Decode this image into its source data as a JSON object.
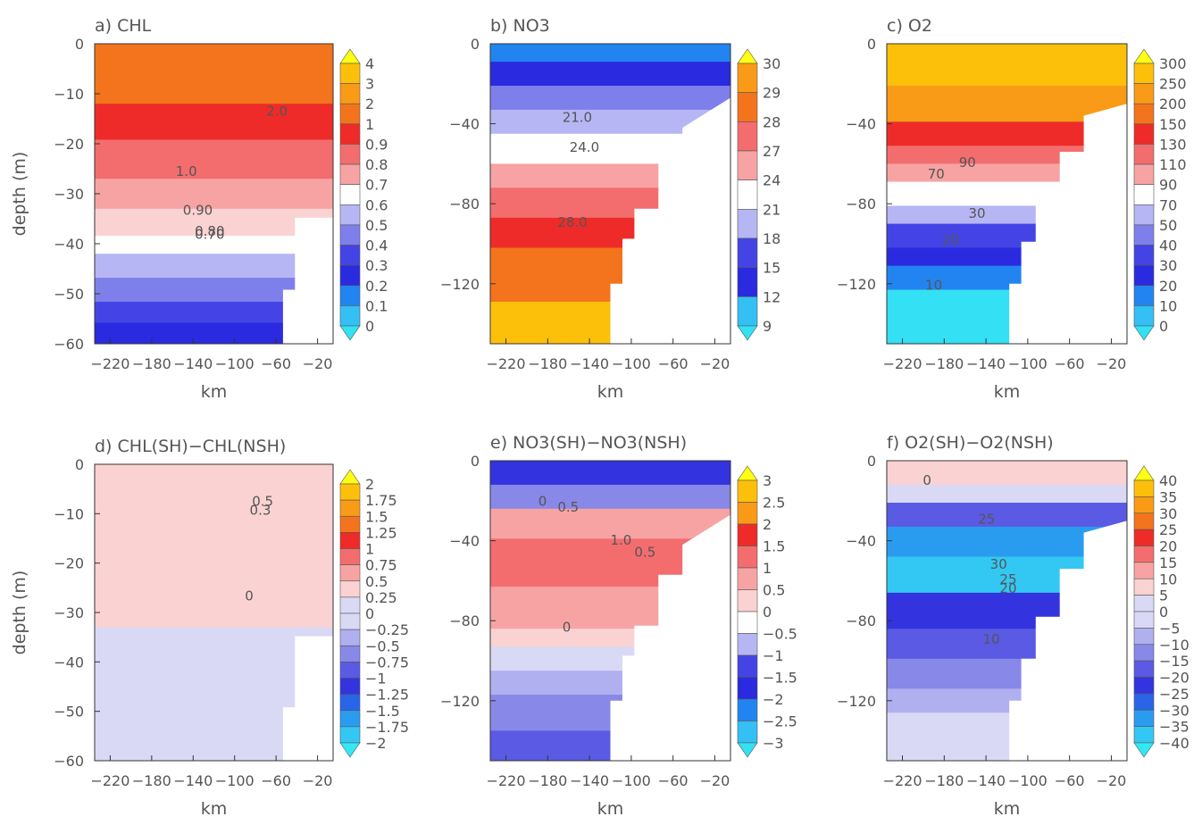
{
  "figure": {
    "shared_xlabel": "km",
    "shared_ylabel": "depth (m)"
  },
  "chart_data": [
    {
      "type": "heatmap",
      "panel": "a",
      "title": "a) CHL",
      "xlabel": "km",
      "ylabel": "depth (m)",
      "x_ticks": [
        -220,
        -180,
        -140,
        -100,
        -60,
        -20
      ],
      "y_ticks": [
        0,
        -10,
        -20,
        -30,
        -40,
        -50,
        -60
      ],
      "xlim": [
        -235,
        -5
      ],
      "ylim": [
        -60,
        0
      ],
      "colorbar_levels": [
        "4",
        "3",
        "2",
        "1",
        "0.9",
        "0.8",
        "0.7",
        "0.6",
        "0.5",
        "0.4",
        "0.3",
        "0.2",
        "0.1",
        "0"
      ],
      "contour_labels": [
        "2.0",
        "1.0",
        "0.90",
        "0.80",
        "0.70"
      ]
    },
    {
      "type": "heatmap",
      "panel": "b",
      "title": "b) NO3",
      "xlabel": "km",
      "ylabel": "",
      "x_ticks": [
        -220,
        -180,
        -140,
        -100,
        -60,
        -20
      ],
      "y_ticks": [
        0,
        -40,
        -80,
        -120
      ],
      "xlim": [
        -235,
        -5
      ],
      "ylim": [
        -150,
        0
      ],
      "colorbar_levels": [
        "30",
        "29",
        "28",
        "27",
        "24",
        "21",
        "18",
        "15",
        "12",
        "9"
      ],
      "contour_labels": [
        "21.0",
        "24.0",
        "28.0"
      ]
    },
    {
      "type": "heatmap",
      "panel": "c",
      "title": "c) O2",
      "xlabel": "km",
      "ylabel": "",
      "x_ticks": [
        -220,
        -180,
        -140,
        -100,
        -60,
        -20
      ],
      "y_ticks": [
        0,
        -40,
        -80,
        -120
      ],
      "xlim": [
        -235,
        -5
      ],
      "ylim": [
        -150,
        0
      ],
      "colorbar_levels": [
        "300",
        "250",
        "200",
        "150",
        "130",
        "110",
        "90",
        "70",
        "50",
        "40",
        "30",
        "20",
        "10",
        "0"
      ],
      "contour_labels": [
        "90",
        "70",
        "30",
        "20",
        "10"
      ]
    },
    {
      "type": "heatmap",
      "panel": "d",
      "title": "d) CHL(SH)−CHL(NSH)",
      "xlabel": "km",
      "ylabel": "depth (m)",
      "x_ticks": [
        -220,
        -180,
        -140,
        -100,
        -60,
        -20
      ],
      "y_ticks": [
        0,
        -10,
        -20,
        -30,
        -40,
        -50,
        -60
      ],
      "xlim": [
        -235,
        -5
      ],
      "ylim": [
        -60,
        0
      ],
      "colorbar_levels": [
        "2",
        "1.75",
        "1.5",
        "1.25",
        "1",
        "0.75",
        "0.5",
        "0.25",
        "0",
        "−0.25",
        "−0.5",
        "−0.75",
        "−1",
        "−1.25",
        "−1.5",
        "−1.75",
        "−2"
      ],
      "contour_labels": [
        "0.5",
        "0.3",
        "0"
      ]
    },
    {
      "type": "heatmap",
      "panel": "e",
      "title": "e) NO3(SH)−NO3(NSH)",
      "xlabel": "km",
      "ylabel": "",
      "x_ticks": [
        -220,
        -180,
        -140,
        -100,
        -60,
        -20
      ],
      "y_ticks": [
        0,
        -40,
        -80,
        -120
      ],
      "xlim": [
        -235,
        -5
      ],
      "ylim": [
        -150,
        0
      ],
      "colorbar_levels": [
        "3",
        "2.5",
        "2",
        "1.5",
        "1",
        "0.5",
        "0",
        "−0.5",
        "−1",
        "−1.5",
        "−2",
        "−2.5",
        "−3"
      ],
      "contour_labels": [
        "0",
        "0.5",
        "1.0",
        "0.5",
        "0"
      ]
    },
    {
      "type": "heatmap",
      "panel": "f",
      "title": "f) O2(SH)−O2(NSH)",
      "xlabel": "km",
      "ylabel": "",
      "x_ticks": [
        -220,
        -180,
        -140,
        -100,
        -60,
        -20
      ],
      "y_ticks": [
        0,
        -40,
        -80,
        -120
      ],
      "xlim": [
        -235,
        -5
      ],
      "ylim": [
        -150,
        0
      ],
      "colorbar_levels": [
        "40",
        "35",
        "30",
        "25",
        "20",
        "15",
        "10",
        "5",
        "0",
        "−5",
        "−10",
        "−15",
        "−20",
        "−25",
        "−30",
        "−35",
        "−40"
      ],
      "contour_labels": [
        "0",
        "25",
        "30",
        "25",
        "20",
        "10"
      ]
    }
  ]
}
